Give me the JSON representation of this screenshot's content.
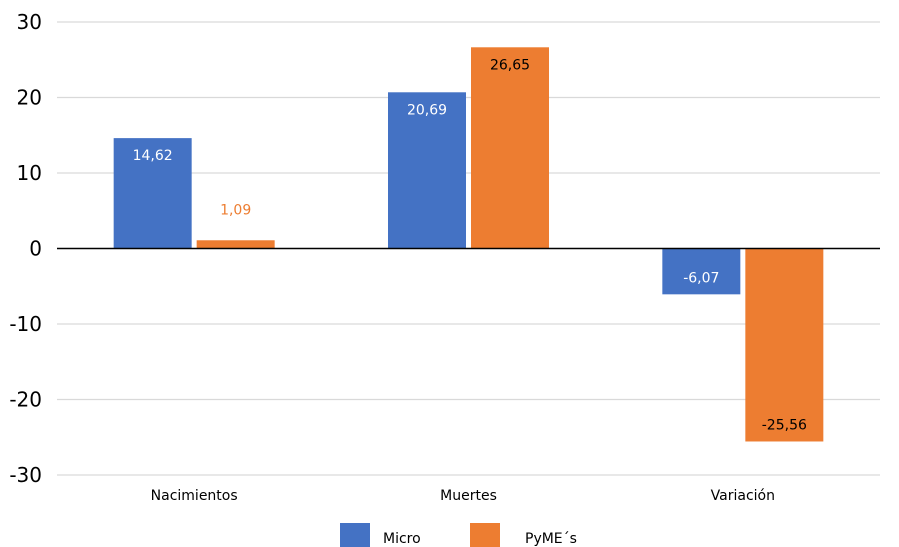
{
  "chart_data": {
    "type": "bar",
    "categories": [
      "Nacimientos",
      "Muertes",
      "Variación"
    ],
    "series": [
      {
        "name": "Micro",
        "values": [
          14.62,
          20.69,
          -6.07
        ],
        "labels": [
          "14,62",
          "20,69",
          "-6,07"
        ],
        "color": "#4472C4",
        "label_color": "#ffffff"
      },
      {
        "name": "PyME´s",
        "values": [
          1.09,
          26.65,
          -25.56
        ],
        "labels": [
          "1,09",
          "26,65",
          "-25,56"
        ],
        "color": "#ED7D31",
        "label_color": "#000000",
        "outside_label_color": "#ED7D31"
      }
    ],
    "y_ticks": [
      "30",
      "20",
      "10",
      "0",
      "-10",
      "-20",
      "-30"
    ],
    "ylim": [
      -30,
      30
    ],
    "grid": true,
    "legend_position": "bottom",
    "title": "",
    "xlabel": "",
    "ylabel": ""
  }
}
